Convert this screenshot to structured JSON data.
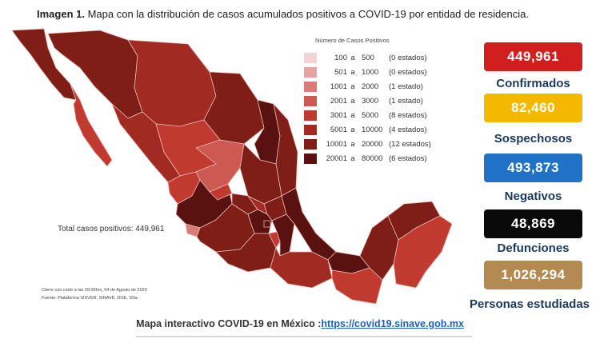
{
  "title": {
    "label": "Imagen 1.",
    "text": "Mapa con la distribución de casos acumulados positivos a COVID-19 por entidad de residencia."
  },
  "legend": {
    "title": "Número de Casos Positivos",
    "ranges": [
      {
        "low": "100",
        "sep": "a",
        "high": "500",
        "count": "(0 estados)",
        "color": "#f3d3d3"
      },
      {
        "low": "501",
        "sep": "a",
        "high": "1000",
        "count": "(0 estados)",
        "color": "#e5a3a1"
      },
      {
        "low": "1001",
        "sep": "a",
        "high": "2000",
        "count": "(1 estado)",
        "color": "#d97b76"
      },
      {
        "low": "2001",
        "sep": "a",
        "high": "3000",
        "count": "(1 estado)",
        "color": "#cc5a52"
      },
      {
        "low": "3001",
        "sep": "a",
        "high": "5000",
        "count": "(8 estados)",
        "color": "#c13a30"
      },
      {
        "low": "5001",
        "sep": "a",
        "high": "10000",
        "count": "(4 estados)",
        "color": "#a12a22"
      },
      {
        "low": "10001",
        "sep": "a",
        "high": "20000",
        "count": "(12 estados)",
        "color": "#7f1d17"
      },
      {
        "low": "20001",
        "sep": "a",
        "high": "80000",
        "count": "(6 estados)",
        "color": "#5a1210"
      }
    ]
  },
  "total_text": "Total casos positivos: 449,961",
  "cutoff_text": "Cierre con corte a las 09:00hrs, 04 de Agosto de 2020",
  "source_text": "Fuente: Plataforma SISVER, SINAVE, DGE, SSa.",
  "stats": [
    {
      "value": "449,961",
      "label": "Confirmados",
      "color": "#d11f1f"
    },
    {
      "value": "82,460",
      "label": "Sospechosos",
      "color": "#f5b800"
    },
    {
      "value": "493,873",
      "label": "Negativos",
      "color": "#1f72c6"
    },
    {
      "value": "48,869",
      "label": "Defunciones",
      "color": "#0a0a0a"
    },
    {
      "value": "1,026,294",
      "label": "Personas estudiadas",
      "color": "#b38b52"
    }
  ],
  "footer": {
    "text": "Mapa interactivo COVID-19 en México :",
    "link": "https://covid19.sinave.gob.mx"
  }
}
